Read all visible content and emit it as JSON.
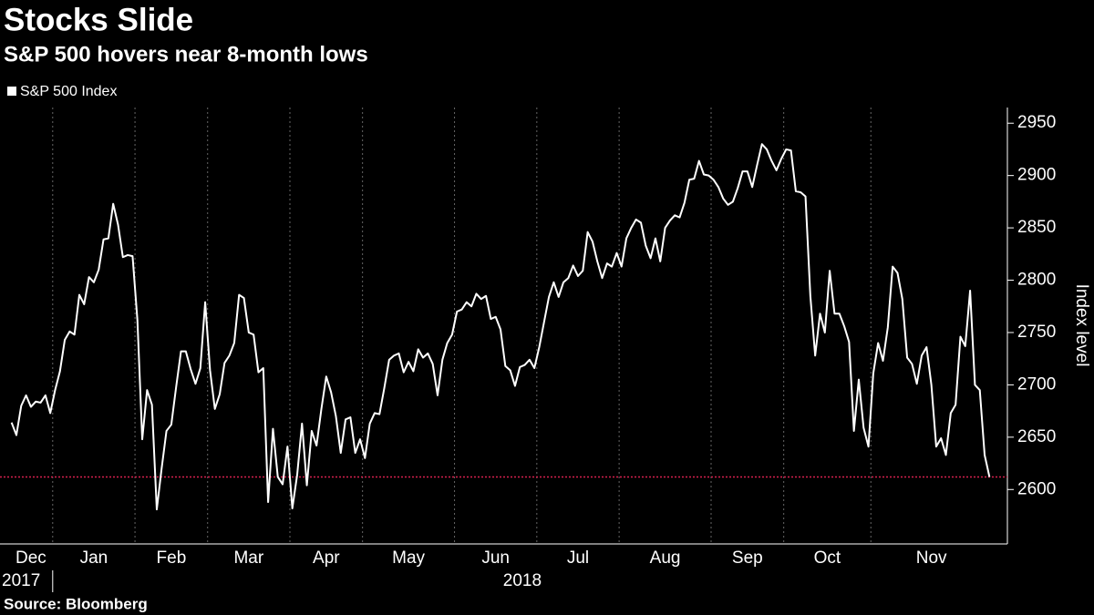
{
  "chart_data": {
    "type": "line",
    "title": "Stocks Slide",
    "subtitle": "S&P 500 hovers near 8-month lows",
    "source": "Source: Bloomberg",
    "y_label": "Index level",
    "years": [
      "2017",
      "2018"
    ],
    "reference_line": {
      "value": 2612,
      "color": "#d6204e"
    },
    "ylim": [
      2548,
      2965
    ],
    "yticks": [
      2600,
      2650,
      2700,
      2750,
      2800,
      2850,
      2900,
      2950
    ],
    "grid": true,
    "categories": [
      "Dec",
      null,
      null,
      null,
      null,
      null,
      null,
      null,
      null,
      "Jan",
      null,
      null,
      null,
      null,
      null,
      null,
      null,
      null,
      null,
      null,
      null,
      null,
      null,
      null,
      null,
      null,
      "Feb",
      null,
      null,
      null,
      null,
      null,
      null,
      null,
      null,
      null,
      null,
      null,
      null,
      null,
      null,
      "Mar",
      null,
      null,
      null,
      null,
      null,
      null,
      null,
      null,
      null,
      null,
      null,
      null,
      null,
      null,
      null,
      null,
      "Apr",
      null,
      null,
      null,
      null,
      null,
      null,
      null,
      null,
      null,
      null,
      null,
      null,
      null,
      null,
      "May",
      null,
      null,
      null,
      null,
      null,
      null,
      null,
      null,
      null,
      null,
      null,
      null,
      null,
      null,
      null,
      null,
      null,
      null,
      "Jun",
      null,
      null,
      null,
      null,
      null,
      null,
      null,
      null,
      null,
      null,
      null,
      null,
      null,
      null,
      null,
      null,
      "Jul",
      null,
      null,
      null,
      null,
      null,
      null,
      null,
      null,
      null,
      null,
      null,
      null,
      null,
      null,
      null,
      null,
      "Aug",
      null,
      null,
      null,
      null,
      null,
      null,
      null,
      null,
      null,
      null,
      null,
      null,
      null,
      null,
      null,
      null,
      null,
      null,
      "Sep",
      null,
      null,
      null,
      null,
      null,
      null,
      null,
      null,
      null,
      null,
      null,
      null,
      null,
      null,
      "Oct",
      null,
      null,
      null,
      null,
      null,
      null,
      null,
      null,
      null,
      null,
      null,
      null,
      null,
      null,
      null,
      null,
      null,
      "Nov",
      null,
      null,
      null,
      null,
      null,
      null,
      null,
      null,
      null,
      null,
      null,
      null,
      null,
      null,
      null,
      null,
      null,
      null,
      null,
      null,
      null,
      null,
      null,
      null
    ],
    "series": [
      {
        "name": "S&P 500 Index",
        "color": "#ffffff",
        "values": [
          2664,
          2652,
          2680,
          2690,
          2679,
          2684,
          2683,
          2690,
          2673,
          2695,
          2713,
          2743,
          2751,
          2748,
          2786,
          2777,
          2803,
          2798,
          2810,
          2839,
          2840,
          2873,
          2853,
          2822,
          2824,
          2823,
          2762,
          2648,
          2695,
          2681,
          2581,
          2620,
          2656,
          2662,
          2698,
          2732,
          2732,
          2715,
          2701,
          2716,
          2779,
          2714,
          2677,
          2691,
          2721,
          2728,
          2740,
          2786,
          2783,
          2750,
          2748,
          2712,
          2716,
          2588,
          2658,
          2612,
          2605,
          2641,
          2582,
          2614,
          2663,
          2604,
          2656,
          2642,
          2677,
          2708,
          2693,
          2670,
          2635,
          2667,
          2669,
          2635,
          2648,
          2630,
          2663,
          2673,
          2672,
          2697,
          2724,
          2728,
          2730,
          2712,
          2722,
          2713,
          2734,
          2726,
          2730,
          2720,
          2690,
          2724,
          2740,
          2748,
          2770,
          2772,
          2779,
          2775,
          2787,
          2782,
          2785,
          2763,
          2765,
          2753,
          2718,
          2714,
          2699,
          2717,
          2719,
          2724,
          2716,
          2736,
          2760,
          2784,
          2798,
          2784,
          2798,
          2802,
          2814,
          2804,
          2809,
          2846,
          2837,
          2818,
          2802,
          2816,
          2813,
          2826,
          2813,
          2840,
          2850,
          2858,
          2855,
          2833,
          2821,
          2840,
          2818,
          2850,
          2857,
          2862,
          2860,
          2874,
          2896,
          2897,
          2914,
          2901,
          2900,
          2896,
          2889,
          2878,
          2872,
          2875,
          2888,
          2904,
          2904,
          2889,
          2910,
          2930,
          2925,
          2914,
          2905,
          2916,
          2925,
          2924,
          2885,
          2884,
          2880,
          2785,
          2728,
          2768,
          2750,
          2809,
          2768,
          2768,
          2756,
          2741,
          2656,
          2705,
          2659,
          2641,
          2711,
          2740,
          2723,
          2755,
          2813,
          2807,
          2782,
          2726,
          2720,
          2701,
          2728,
          2736,
          2700,
          2641,
          2649,
          2633,
          2673,
          2681,
          2746,
          2737,
          2790,
          2700,
          2695,
          2633,
          2612
        ]
      }
    ]
  }
}
